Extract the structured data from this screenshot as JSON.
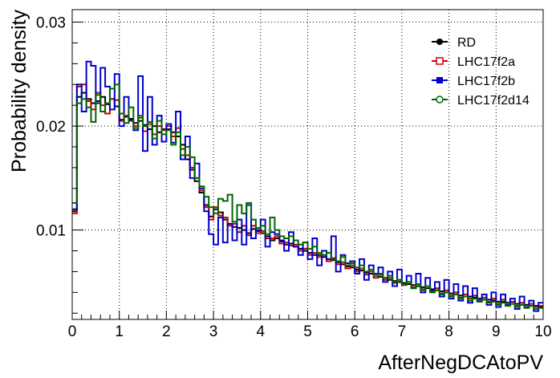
{
  "chart_data": {
    "type": "line",
    "style": "step-histogram",
    "xlabel": "AfterNegDCAtoPV",
    "ylabel": "Probability density",
    "xlim": [
      0,
      10
    ],
    "ylim": [
      0.0014,
      0.0312
    ],
    "x_ticks": [
      {
        "value": 0,
        "label": "0"
      },
      {
        "value": 1,
        "label": "1"
      },
      {
        "value": 2,
        "label": "2"
      },
      {
        "value": 3,
        "label": "3"
      },
      {
        "value": 4,
        "label": "4"
      },
      {
        "value": 5,
        "label": "5"
      },
      {
        "value": 6,
        "label": "6"
      },
      {
        "value": 7,
        "label": "7"
      },
      {
        "value": 8,
        "label": "8"
      },
      {
        "value": 9,
        "label": "9"
      },
      {
        "value": 10,
        "label": "10"
      }
    ],
    "y_ticks": [
      {
        "value": 0.01,
        "label": "0.01"
      },
      {
        "value": 0.02,
        "label": "0.02"
      },
      {
        "value": 0.03,
        "label": "0.03"
      }
    ],
    "grid": true,
    "legend_position": "top-right",
    "bin_width": 0.1,
    "series": [
      {
        "name": "RD",
        "color": "#000000",
        "marker": "filled-circle",
        "values": [
          0.0118,
          0.0228,
          0.0232,
          0.0226,
          0.0222,
          0.0224,
          0.0228,
          0.0221,
          0.0226,
          0.0219,
          0.0206,
          0.0209,
          0.0207,
          0.0203,
          0.0205,
          0.0201,
          0.0197,
          0.02,
          0.0194,
          0.0197,
          0.0197,
          0.0194,
          0.019,
          0.0182,
          0.0168,
          0.0158,
          0.0147,
          0.0136,
          0.0124,
          0.0113,
          0.012,
          0.0117,
          0.011,
          0.0106,
          0.0103,
          0.0102,
          0.01,
          0.0097,
          0.0101,
          0.0099,
          0.0097,
          0.0094,
          0.009,
          0.0092,
          0.0089,
          0.0086,
          0.0087,
          0.0084,
          0.0082,
          0.008,
          0.0078,
          0.0076,
          0.0076,
          0.0074,
          0.0072,
          0.0071,
          0.0069,
          0.0067,
          0.0065,
          0.0064,
          0.0062,
          0.0061,
          0.0059,
          0.0058,
          0.0056,
          0.0055,
          0.0054,
          0.0052,
          0.0051,
          0.005,
          0.0049,
          0.0048,
          0.0047,
          0.0046,
          0.0045,
          0.0044,
          0.0043,
          0.0042,
          0.0041,
          0.004,
          0.0039,
          0.0038,
          0.0037,
          0.0036,
          0.0036,
          0.0035,
          0.0034,
          0.0033,
          0.0033,
          0.0032,
          0.0031,
          0.0031,
          0.003,
          0.0029,
          0.0029,
          0.0028,
          0.0028,
          0.0027,
          0.0027,
          0.0026
        ]
      },
      {
        "name": "LHC17f2a",
        "color": "#cc0000",
        "marker": "open-square",
        "values": [
          0.0116,
          0.0238,
          0.024,
          0.0224,
          0.0216,
          0.0232,
          0.022,
          0.0212,
          0.0226,
          0.0225,
          0.0205,
          0.021,
          0.0205,
          0.02,
          0.0208,
          0.0195,
          0.0202,
          0.0192,
          0.02,
          0.0196,
          0.02,
          0.019,
          0.0198,
          0.0178,
          0.0172,
          0.016,
          0.015,
          0.0138,
          0.0122,
          0.011,
          0.0122,
          0.0114,
          0.0112,
          0.0104,
          0.0106,
          0.0098,
          0.0104,
          0.0095,
          0.0104,
          0.0097,
          0.0099,
          0.0092,
          0.0092,
          0.0094,
          0.0087,
          0.0088,
          0.0085,
          0.0086,
          0.008,
          0.0082,
          0.0076,
          0.0078,
          0.0074,
          0.0076,
          0.007,
          0.0073,
          0.0067,
          0.0069,
          0.0063,
          0.0066,
          0.006,
          0.0063,
          0.0057,
          0.006,
          0.0054,
          0.0057,
          0.0052,
          0.0054,
          0.0049,
          0.0052,
          0.0047,
          0.005,
          0.0045,
          0.0048,
          0.0043,
          0.0046,
          0.0041,
          0.0044,
          0.0039,
          0.0042,
          0.0037,
          0.004,
          0.0035,
          0.0038,
          0.0034,
          0.0037,
          0.0032,
          0.0035,
          0.0031,
          0.0034,
          0.0029,
          0.0033,
          0.0028,
          0.0031,
          0.0027,
          0.003,
          0.0026,
          0.0029,
          0.0026,
          0.0027
        ]
      },
      {
        "name": "LHC17f2b",
        "color": "#0000cc",
        "marker": "filled-square",
        "values": [
          0.012,
          0.024,
          0.0214,
          0.0262,
          0.0258,
          0.0222,
          0.0256,
          0.0238,
          0.0216,
          0.025,
          0.02,
          0.0228,
          0.0206,
          0.0196,
          0.0248,
          0.0176,
          0.0228,
          0.0182,
          0.021,
          0.0185,
          0.0202,
          0.0184,
          0.0214,
          0.0168,
          0.019,
          0.015,
          0.0164,
          0.014,
          0.0118,
          0.0096,
          0.0086,
          0.0112,
          0.0088,
          0.0106,
          0.009,
          0.011,
          0.0086,
          0.0124,
          0.0092,
          0.01,
          0.011,
          0.0084,
          0.0098,
          0.0096,
          0.009,
          0.008,
          0.0098,
          0.0084,
          0.0076,
          0.0088,
          0.0072,
          0.0092,
          0.0066,
          0.008,
          0.0072,
          0.0094,
          0.006,
          0.0076,
          0.0068,
          0.007,
          0.0058,
          0.0072,
          0.0052,
          0.0066,
          0.0058,
          0.0064,
          0.005,
          0.006,
          0.0046,
          0.0062,
          0.0048,
          0.0056,
          0.0044,
          0.0058,
          0.004,
          0.0054,
          0.0042,
          0.005,
          0.0036,
          0.0052,
          0.0034,
          0.0048,
          0.0032,
          0.0046,
          0.003,
          0.0044,
          0.0032,
          0.0038,
          0.0028,
          0.004,
          0.0026,
          0.0038,
          0.0028,
          0.0034,
          0.0024,
          0.0036,
          0.0026,
          0.0032,
          0.0022,
          0.003
        ]
      },
      {
        "name": "LHC17f2d14",
        "color": "#006600",
        "marker": "open-circle",
        "values": [
          0.0126,
          0.0222,
          0.0226,
          0.0218,
          0.0204,
          0.023,
          0.0214,
          0.0222,
          0.0236,
          0.024,
          0.0212,
          0.0203,
          0.0218,
          0.0198,
          0.021,
          0.02,
          0.0204,
          0.0188,
          0.0205,
          0.0192,
          0.0196,
          0.0182,
          0.0194,
          0.0172,
          0.018,
          0.017,
          0.015,
          0.0142,
          0.0132,
          0.0122,
          0.0116,
          0.013,
          0.0128,
          0.0134,
          0.0108,
          0.0124,
          0.0116,
          0.0126,
          0.011,
          0.0102,
          0.0104,
          0.0096,
          0.0112,
          0.01,
          0.0094,
          0.0092,
          0.0094,
          0.009,
          0.0086,
          0.0088,
          0.0082,
          0.0084,
          0.0078,
          0.0076,
          0.0078,
          0.0072,
          0.007,
          0.0074,
          0.0066,
          0.0068,
          0.0064,
          0.0066,
          0.006,
          0.0062,
          0.0056,
          0.0058,
          0.0054,
          0.0056,
          0.005,
          0.0052,
          0.0048,
          0.005,
          0.0044,
          0.0048,
          0.0042,
          0.0046,
          0.004,
          0.0042,
          0.0038,
          0.004,
          0.0036,
          0.0038,
          0.0034,
          0.0036,
          0.0032,
          0.0034,
          0.0031,
          0.0033,
          0.003,
          0.0031,
          0.0028,
          0.003,
          0.0027,
          0.0029,
          0.0026,
          0.0028,
          0.0025,
          0.0027,
          0.0024,
          0.0025
        ]
      }
    ]
  }
}
